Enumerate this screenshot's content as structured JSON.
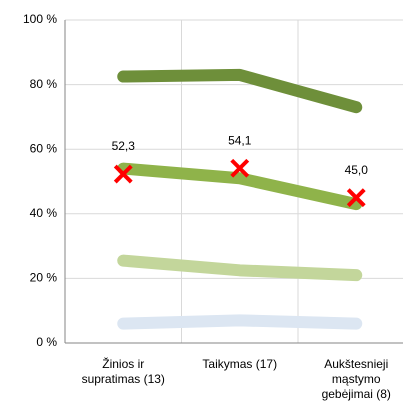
{
  "chart_data": {
    "type": "line",
    "categories": [
      "Žinios ir\nsupratimas (13)",
      "Taikymas (17)",
      "Aukštesnieji\nmąstymo\ngebėjimai (8)"
    ],
    "ylim": [
      0,
      100
    ],
    "yticks": [
      {
        "value": 0,
        "label": "0 %"
      },
      {
        "value": 20,
        "label": "20 %"
      },
      {
        "value": 40,
        "label": "40 %"
      },
      {
        "value": 60,
        "label": "60 %"
      },
      {
        "value": 80,
        "label": "80 %"
      },
      {
        "value": 100,
        "label": "100 %"
      }
    ],
    "grid": true,
    "series": [
      {
        "color": "#dce6f2",
        "values": [
          6,
          7,
          6
        ]
      },
      {
        "color": "#c3d69b",
        "values": [
          25.5,
          22.5,
          21
        ]
      },
      {
        "color": "#8fb34a",
        "values": [
          54,
          51,
          43
        ]
      },
      {
        "color": "#6e8f3a",
        "values": [
          82.5,
          83,
          73
        ]
      },
      {
        "color": "#ff0000",
        "marker": "x",
        "values": [
          52.3,
          54.1,
          45.0
        ],
        "value_labels": [
          "52,3",
          "54,1",
          "45,0"
        ]
      }
    ]
  }
}
